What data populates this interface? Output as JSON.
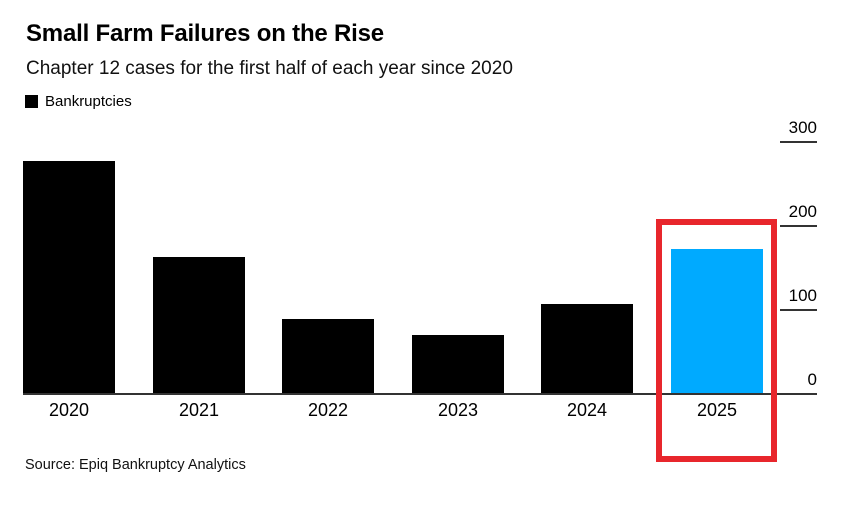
{
  "header": {
    "title": "Small Farm Failures on the Rise",
    "subtitle": "Chapter 12 cases for the first half of each year since 2020"
  },
  "legend": {
    "label": "Bankruptcies",
    "swatch_color": "#000000"
  },
  "chart_data": {
    "type": "bar",
    "title": "Small Farm Failures on the Rise",
    "subtitle": "Chapter 12 cases for the first half of each year since 2020",
    "categories": [
      "2020",
      "2021",
      "2022",
      "2023",
      "2024",
      "2025"
    ],
    "series": [
      {
        "name": "Bankruptcies",
        "values": [
          277,
          163,
          89,
          70,
          107,
          173
        ]
      }
    ],
    "bar_colors": [
      "#000000",
      "#000000",
      "#000000",
      "#000000",
      "#000000",
      "#00AAFF"
    ],
    "xlabel": "",
    "ylabel": "",
    "ylim": [
      0,
      300
    ],
    "yticks": [
      0,
      100,
      200,
      300
    ],
    "yaxis_side": "right",
    "grid": false,
    "legend_position": "top-left",
    "highlight": {
      "category": "2025",
      "bar_color": "#00AAFF",
      "box_color": "#E8262C"
    }
  },
  "footer": {
    "source": "Source: Epiq Bankruptcy Analytics"
  }
}
